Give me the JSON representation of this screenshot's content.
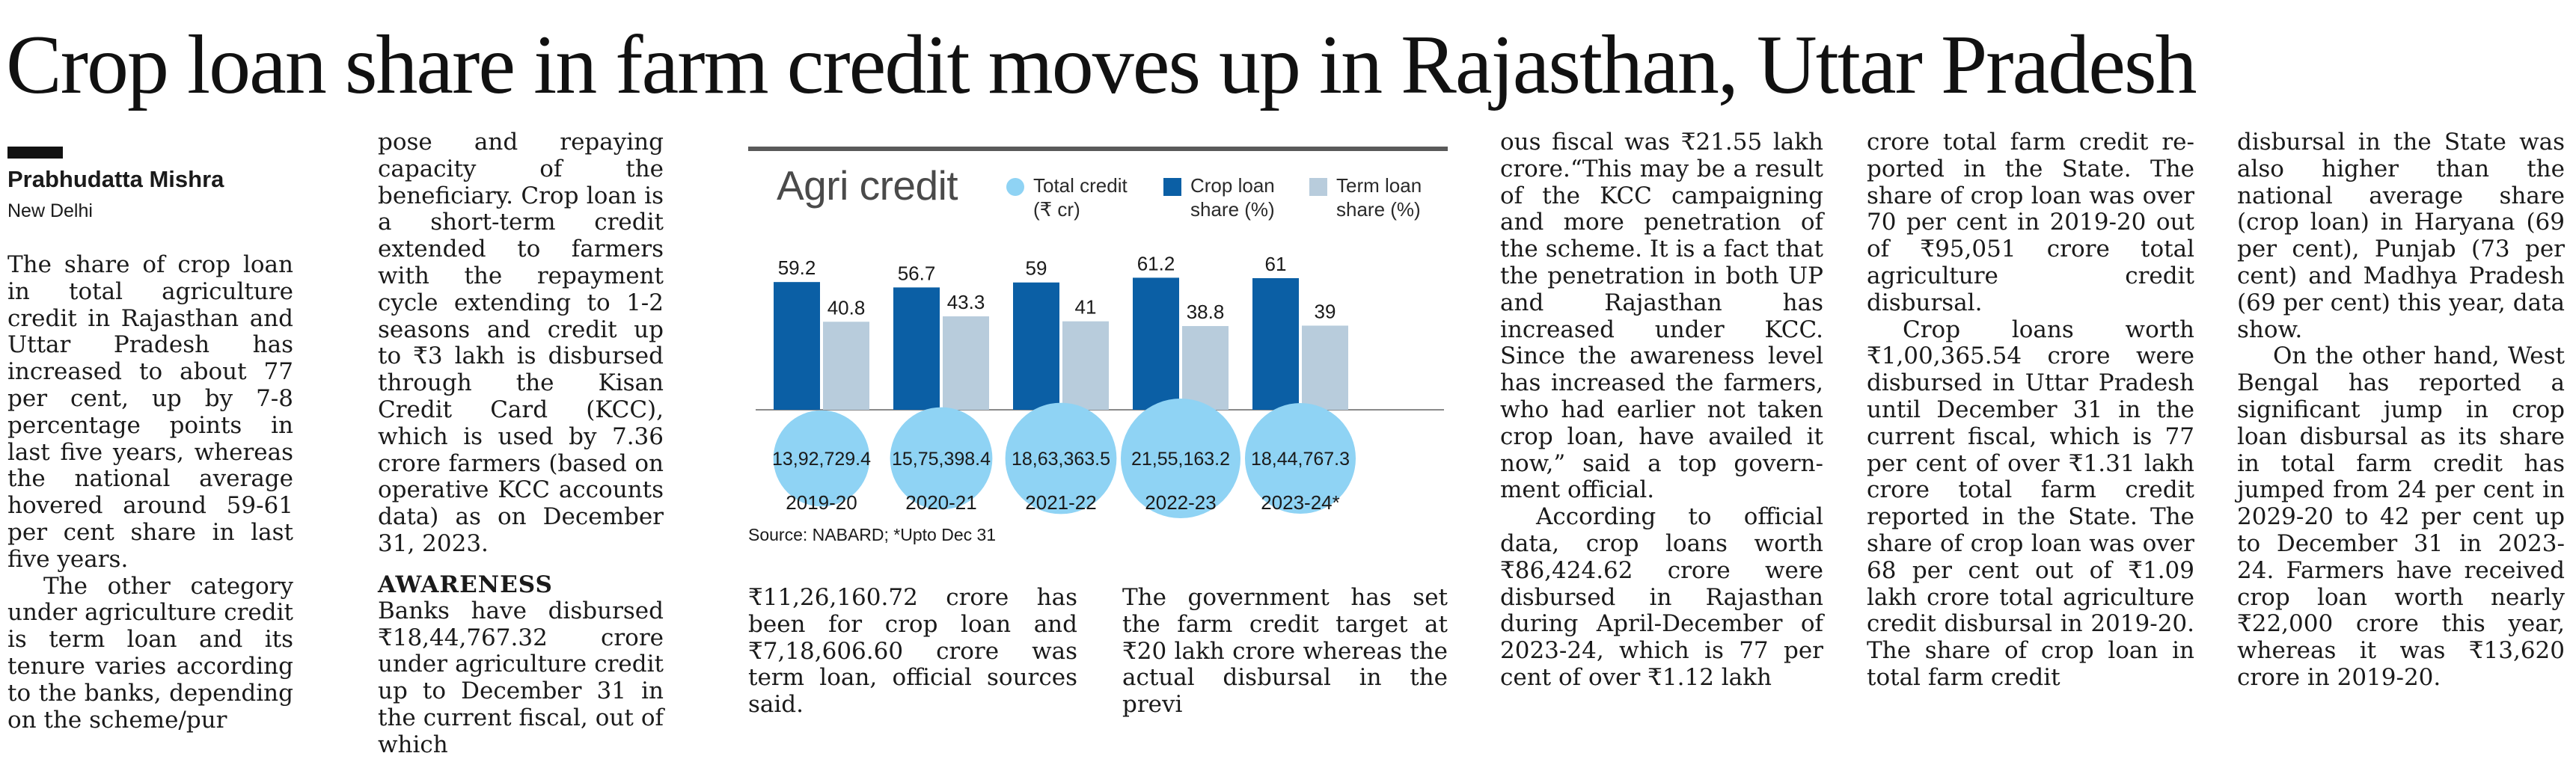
{
  "article": {
    "headline": "Crop loan share in farm credit moves up in Rajasthan, Uttar Pradesh",
    "author": "Prabhudatta Mishra",
    "location": "New Delhi",
    "subhead": "AWARENESS",
    "col1": [
      "The share of crop loan in total agriculture credit in Rajasthan and Uttar Pradesh has increased to about 77 per cent, up by 7-8 percent­age points in last five years, whereas the national aver­age hovered around 59-61 per cent share in last five years.",
      "The other category under agriculture credit is term loan and its tenure varies ac­cording to the banks, de­pending on the scheme/pur­"
    ],
    "col2a": "pose and repaying capacity of the beneficiary. Crop loan is a short-term credit exten­ded to farmers with the re­payment cycle extending to 1-2 seasons and credit up to ₹3 lakh is disbursed through the Kisan Credit Card (KCC), which is used by 7.36 crore farmers (based on op­erative KCC accounts data) as on December 31, 2023.",
    "col2b": "Banks have disbursed ₹18,44,767.32 crore under agriculture credit up to December 31 in the current fiscal, out of which",
    "col3": "₹11,26,160.72 crore has been for crop loan and ₹7,18,606.60 crore was term loan, official sources said.",
    "col4": "The government has set the farm credit target at ₹20 lakh crore whereas the ac­tual disbursal in the previ­",
    "col5": [
      "ous fiscal was ₹21.55 lakh crore.“This may be a result of the KCC campaigning and more penetration of the scheme. It is a fact that the penetration in both UP and Rajasthan has increased un­der KCC. Since the aware­ness level has increased the farmers, who had earlier not taken crop loan, have availed it now,” said a top govern­ment official.",
      "According to official data, crop loans worth ₹86,424.62 crore were disbursed in Ra­jasthan during April-Decem­ber of 2023-24, which is 77 per cent of over ₹1.12 lakh"
    ],
    "col6": [
      "crore total farm credit re­ported in the State. The share of crop loan was over 70 per cent in 2019-20 out of ₹95,051 crore total agricul­ture credit disbursal.",
      "Crop loans worth ₹1,00,365.54 crore were dis­bursed in Uttar Pradesh un­til December 31 in the cur­rent fiscal, which is 77 per cent of over ₹1.31 lakh crore total farm credit reported in the State. The share of crop loan was over 68 per cent out of ₹1.09 lakh crore total agriculture credit disbursal in 2019-20. The share of crop loan in total farm credit"
    ],
    "col7": [
      "disbursal in the State was also higher than the national average share (crop loan) in Haryana (69 per cent), Pun­jab (73 per cent) and Mad­hya Pradesh (69 per cent) this year, data show.",
      "On the other hand, West Bengal has reported a signi­ficant jump in crop loan dis­bursal as its share in total farm credit has jumped from 24 per cent in 2029-20 to 42 per cent up to December 31 in 2023-24. Farmers have re­ceived crop loan worth nearly ₹22,000 crore this year, whereas it was ₹13,620 crore in 2019-20."
    ]
  },
  "chart_data": {
    "type": "bar",
    "title": "Agri credit",
    "categories": [
      "2019-20",
      "2020-21",
      "2021-22",
      "2022-23",
      "2023-24*"
    ],
    "series": [
      {
        "name": "Crop loan share (%)",
        "values": [
          59.2,
          56.7,
          59,
          61.2,
          61
        ],
        "color": "#0b5fa5"
      },
      {
        "name": "Term loan share (%)",
        "values": [
          40.8,
          43.3,
          41,
          38.8,
          39
        ],
        "color": "#b8ccdc"
      }
    ],
    "bubbles": {
      "name": "Total credit (₹ cr)",
      "labels": [
        "13,92,729.4",
        "15,75,398.4",
        "18,63,363.5",
        "21,55,163.2",
        "18,44,767.3"
      ],
      "values": [
        1392729.4,
        1575398.4,
        1863363.5,
        2155163.2,
        1844767.3
      ],
      "color": "#8fd3f4"
    },
    "legend": [
      {
        "label_line1": "Total credit",
        "label_line2": "(₹ cr)",
        "color": "#8fd3f4",
        "shape": "circle"
      },
      {
        "label_line1": "Crop loan",
        "label_line2": "share (%)",
        "color": "#0b5fa5",
        "shape": "square"
      },
      {
        "label_line1": "Term loan",
        "label_line2": "share (%)",
        "color": "#b8ccdc",
        "shape": "square"
      }
    ],
    "ylim": [
      0,
      70
    ],
    "source": "Source: NABARD; *Upto Dec 31"
  }
}
